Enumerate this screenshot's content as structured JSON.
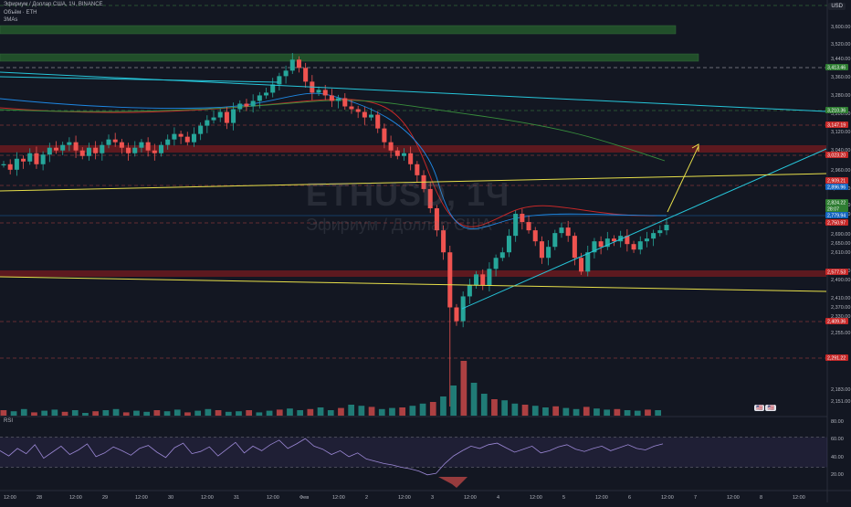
{
  "header": {
    "title": "Эфириум / Доллар США, 1Ч, BINANCE",
    "volume": "Объём · ETH",
    "ma": "3MAs"
  },
  "currency": "USD",
  "watermark": {
    "ticker": "ETHUSD, 1Ч",
    "name": "Эфириум / Доллар США"
  },
  "rsi": {
    "label": "RSI",
    "axis": [
      "80.00",
      "60.00",
      "40.00",
      "20.00"
    ]
  },
  "indicator_flags": [
    "🇺🇸",
    "🇺🇸"
  ],
  "colors": {
    "background": "#131722",
    "up": "#26a69a",
    "down": "#ef5350",
    "zone_green": "#2e7d32",
    "zone_red": "#b71c1c",
    "trend_cyan": "#26c6da",
    "trend_yellow": "#e8e04a",
    "ma_red": "#c62828",
    "ma_blue": "#1e88e5",
    "ma_green": "#388e3c",
    "rsi_line": "#9c88d6"
  },
  "chart_data": {
    "type": "candlestick",
    "symbol": "ETHUSD",
    "interval": "1Ч",
    "y_axis_ticks": [
      "3,600.00",
      "3,520.00",
      "3,440.00",
      "3,360.00",
      "3,280.00",
      "3,200.00",
      "3,120.00",
      "3,040.00",
      "2,960.00",
      "2,880.00",
      "2,810.00",
      "2,770.00",
      "2,690.00",
      "2,650.00",
      "2,610.00",
      "2,530.00",
      "2,490.00",
      "2,410.00",
      "2,370.00",
      "2,330.00",
      "2,255.00",
      "2,183.00",
      "2,151.00"
    ],
    "price_labels": [
      {
        "value": "3,413.46",
        "kind": "green"
      },
      {
        "value": "3,210.36",
        "kind": "green"
      },
      {
        "value": "3,147.19",
        "kind": "red"
      },
      {
        "value": "3,023.20",
        "kind": "red"
      },
      {
        "value": "2,909.21",
        "kind": "red"
      },
      {
        "value": "2,896.96",
        "kind": "blue"
      },
      {
        "value": "2,824.22",
        "kind": "green"
      },
      {
        "value": "28:07",
        "kind": "green"
      },
      {
        "value": "2,779.94",
        "kind": "blue"
      },
      {
        "value": "2,750.97",
        "kind": "red"
      },
      {
        "value": "2,577.53",
        "kind": "red"
      },
      {
        "value": "2,409.36",
        "kind": "red"
      },
      {
        "value": "2,291.22",
        "kind": "red"
      }
    ],
    "x_axis_labels": [
      "12:00",
      "28",
      "12:00",
      "29",
      "12:00",
      "30",
      "12:00",
      "31",
      "12:00",
      "Фев",
      "12:00",
      "2",
      "12:00",
      "3",
      "12:00",
      "4",
      "12:00",
      "5",
      "12:00",
      "6",
      "12:00",
      "7",
      "12:00",
      "8",
      "12:00"
    ],
    "close_path": [
      3040,
      3020,
      3060,
      3050,
      3080,
      3040,
      3075,
      3100,
      3090,
      3110,
      3120,
      3090,
      3070,
      3100,
      3080,
      3110,
      3130,
      3120,
      3100,
      3080,
      3100,
      3120,
      3090,
      3080,
      3110,
      3130,
      3150,
      3140,
      3120,
      3150,
      3180,
      3200,
      3210,
      3230,
      3190,
      3240,
      3260,
      3250,
      3270,
      3290,
      3300,
      3330,
      3360,
      3380,
      3420,
      3390,
      3340,
      3300,
      3310,
      3290,
      3270,
      3280,
      3250,
      3240,
      3230,
      3210,
      3220,
      3170,
      3120,
      3090,
      3070,
      3080,
      3040,
      3000,
      2950,
      2880,
      2800,
      2720,
      2520,
      2470,
      2560,
      2600,
      2640,
      2600,
      2660,
      2700,
      2720,
      2780,
      2860,
      2830,
      2800,
      2760,
      2700,
      2740,
      2790,
      2810,
      2780,
      2700,
      2650,
      2720,
      2760,
      2740,
      2770,
      2760,
      2780,
      2750,
      2730,
      2760,
      2770,
      2790,
      2800,
      2820
    ],
    "rsi_values": [
      52,
      45,
      55,
      48,
      60,
      42,
      50,
      58,
      47,
      53,
      61,
      44,
      49,
      57,
      52,
      46,
      55,
      59,
      50,
      43,
      56,
      62,
      48,
      51,
      57,
      45,
      54,
      63,
      49,
      58,
      52,
      60,
      66,
      55,
      61,
      68,
      58,
      54,
      47,
      52,
      44,
      49,
      41,
      38,
      35,
      33,
      30,
      28,
      25,
      20,
      22,
      35,
      45,
      52,
      58,
      55,
      60,
      62,
      56,
      50,
      54,
      58,
      49,
      52,
      57,
      60,
      54,
      51,
      55,
      58,
      52,
      56,
      60,
      55,
      53,
      58,
      61
    ],
    "volume_relative": [
      0.1,
      0.08,
      0.12,
      0.06,
      0.09,
      0.11,
      0.07,
      0.1,
      0.05,
      0.08,
      0.1,
      0.12,
      0.06,
      0.09,
      0.07,
      0.1,
      0.08,
      0.11,
      0.06,
      0.09,
      0.12,
      0.1,
      0.07,
      0.08,
      0.1,
      0.06,
      0.09,
      0.11,
      0.13,
      0.1,
      0.12,
      0.15,
      0.1,
      0.14,
      0.2,
      0.18,
      0.16,
      0.12,
      0.14,
      0.15,
      0.18,
      0.22,
      0.25,
      0.35,
      0.55,
      1.0,
      0.6,
      0.4,
      0.3,
      0.28,
      0.22,
      0.2,
      0.18,
      0.15,
      0.17,
      0.14,
      0.12,
      0.16,
      0.13,
      0.11,
      0.12,
      0.1,
      0.09,
      0.11,
      0.1
    ]
  }
}
